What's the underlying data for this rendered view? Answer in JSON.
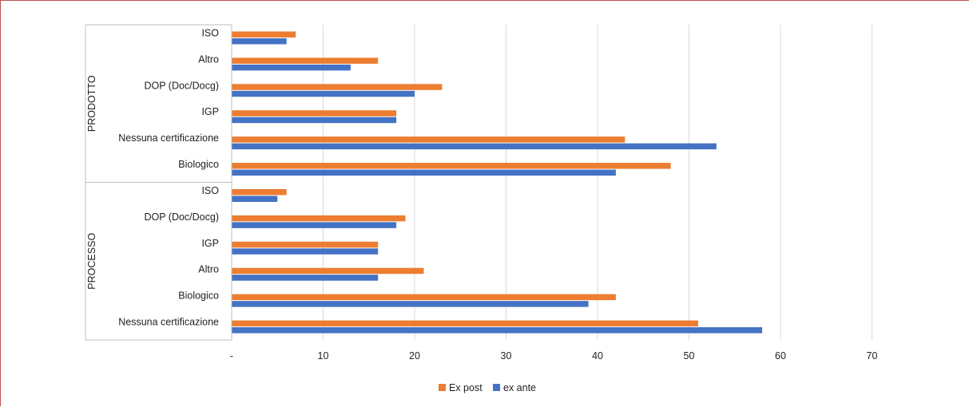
{
  "chart_data": {
    "type": "bar",
    "orientation": "horizontal",
    "xlim": [
      0,
      70
    ],
    "x_ticks": [
      {
        "value": 0,
        "label": "-"
      },
      {
        "value": 10,
        "label": "10"
      },
      {
        "value": 20,
        "label": "20"
      },
      {
        "value": 30,
        "label": "30"
      },
      {
        "value": 40,
        "label": "40"
      },
      {
        "value": 50,
        "label": "50"
      },
      {
        "value": 60,
        "label": "60"
      },
      {
        "value": 70,
        "label": "70"
      }
    ],
    "grid": true,
    "legend_position": "bottom",
    "colors": {
      "Ex post": "#ed7d31",
      "ex ante": "#4472c4",
      "grid": "#d9d9d9",
      "axis": "#bfbfbf"
    },
    "groups": [
      {
        "name": "PRODOTTO",
        "categories": [
          "ISO",
          "Altro",
          "DOP (Doc/Docg)",
          "IGP",
          "Nessuna certificazione",
          "Biologico"
        ],
        "series": [
          {
            "name": "Ex post",
            "values": [
              7,
              16,
              23,
              18,
              43,
              48
            ]
          },
          {
            "name": "ex ante",
            "values": [
              6,
              13,
              20,
              18,
              53,
              42
            ]
          }
        ]
      },
      {
        "name": "PROCESSO",
        "categories": [
          "ISO",
          "DOP (Doc/Docg)",
          "IGP",
          "Altro",
          "Biologico",
          "Nessuna certificazione"
        ],
        "series": [
          {
            "name": "Ex post",
            "values": [
              6,
              19,
              16,
              21,
              42,
              51
            ]
          },
          {
            "name": "ex ante",
            "values": [
              5,
              18,
              16,
              16,
              39,
              58
            ]
          }
        ]
      }
    ],
    "legend": [
      "Ex post",
      "ex ante"
    ]
  }
}
